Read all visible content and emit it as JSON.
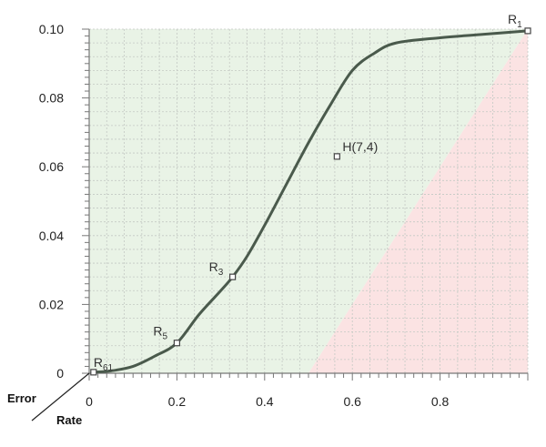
{
  "chart_data": {
    "type": "line",
    "x_ticks": [
      "0",
      "0.2",
      "0.4",
      "0.6",
      "0.8"
    ],
    "y_ticks": [
      "0",
      "0.02",
      "0.04",
      "0.06",
      "0.08",
      "0.10"
    ],
    "xlim": [
      0,
      1
    ],
    "ylim": [
      0,
      0.1
    ],
    "grid": true,
    "corner_labels": {
      "y_name": "Error",
      "x_name": "Rate"
    },
    "regions": [
      {
        "color": "#e9f3e6",
        "polygon": [
          [
            0,
            0
          ],
          [
            0.5,
            0
          ],
          [
            1,
            0.1
          ],
          [
            0,
            0.1
          ]
        ]
      },
      {
        "color": "#fbe3e3",
        "polygon": [
          [
            0.5,
            0
          ],
          [
            1,
            0
          ],
          [
            1,
            0.1
          ]
        ]
      }
    ],
    "curve": {
      "color": "#4a5a4c",
      "points": [
        [
          0.01,
          0.0003
        ],
        [
          0.05,
          0.0007
        ],
        [
          0.1,
          0.002
        ],
        [
          0.15,
          0.005
        ],
        [
          0.2,
          0.0088
        ],
        [
          0.25,
          0.017
        ],
        [
          0.3,
          0.024
        ],
        [
          0.327,
          0.028
        ],
        [
          0.36,
          0.034
        ],
        [
          0.4,
          0.043
        ],
        [
          0.45,
          0.055
        ],
        [
          0.5,
          0.067
        ],
        [
          0.55,
          0.078
        ],
        [
          0.6,
          0.088
        ],
        [
          0.65,
          0.093
        ],
        [
          0.7,
          0.096
        ],
        [
          0.8,
          0.0975
        ],
        [
          0.9,
          0.0985
        ],
        [
          1.0,
          0.0995
        ]
      ]
    },
    "labeled_points": [
      {
        "name": "R",
        "sub": "61",
        "x": 0.01,
        "y": 0.0003
      },
      {
        "name": "R",
        "sub": "5",
        "x": 0.2,
        "y": 0.0088
      },
      {
        "name": "R",
        "sub": "3",
        "x": 0.327,
        "y": 0.028
      },
      {
        "name": "H(7,4)",
        "sub": "",
        "x": 0.565,
        "y": 0.063
      },
      {
        "name": "R",
        "sub": "1",
        "x": 1.0,
        "y": 0.0995
      }
    ]
  }
}
